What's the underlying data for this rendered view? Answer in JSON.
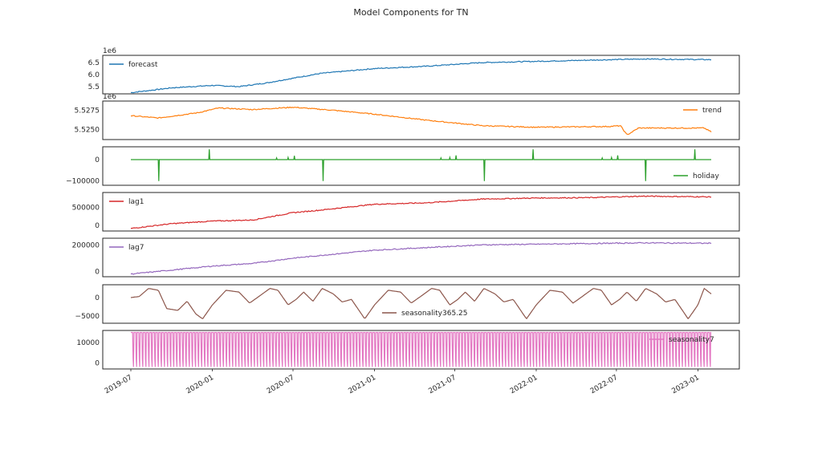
{
  "title": "Model Components for TN",
  "chart_data": {
    "type": "line",
    "title": "Model Components for TN",
    "x_tick_labels": [
      "2019-07",
      "2020-01",
      "2020-07",
      "2021-01",
      "2021-07",
      "2022-01",
      "2022-07",
      "2023-01"
    ],
    "x_range": [
      "2019-07-01",
      "2023-01-31"
    ],
    "panels": [
      {
        "name": "forecast",
        "color": "#1f77b4",
        "legend_pos": "top-left",
        "offset_label": "1e6",
        "ylim": [
          5.2,
          6.8
        ],
        "yticks": [
          "6.5",
          "6.0",
          "5.5"
        ],
        "points": [
          [
            "2019-07-01",
            5.25
          ],
          [
            "2019-10-01",
            5.45
          ],
          [
            "2020-01-01",
            5.55
          ],
          [
            "2020-03-01",
            5.5
          ],
          [
            "2020-05-01",
            5.65
          ],
          [
            "2020-07-01",
            5.85
          ],
          [
            "2020-09-01",
            6.05
          ],
          [
            "2021-01-01",
            6.25
          ],
          [
            "2021-05-01",
            6.35
          ],
          [
            "2021-09-01",
            6.5
          ],
          [
            "2022-01-01",
            6.55
          ],
          [
            "2022-05-01",
            6.6
          ],
          [
            "2022-09-01",
            6.65
          ],
          [
            "2023-01-31",
            6.62
          ]
        ]
      },
      {
        "name": "trend",
        "color": "#ff7f0e",
        "legend_pos": "top-right",
        "offset_label": "1e6",
        "ylim": [
          5.5237,
          5.5287
        ],
        "yticks": [
          "5.5275",
          "5.5250"
        ],
        "points": [
          [
            "2019-07-01",
            5.5268
          ],
          [
            "2019-09-01",
            5.5265
          ],
          [
            "2019-12-01",
            5.5272
          ],
          [
            "2020-01-15",
            5.5278
          ],
          [
            "2020-04-01",
            5.5276
          ],
          [
            "2020-07-01",
            5.5279
          ],
          [
            "2020-10-01",
            5.5275
          ],
          [
            "2021-01-01",
            5.527
          ],
          [
            "2021-05-01",
            5.5262
          ],
          [
            "2021-09-01",
            5.5255
          ],
          [
            "2022-01-01",
            5.5253
          ],
          [
            "2022-06-15",
            5.5254
          ],
          [
            "2022-07-10",
            5.5255
          ],
          [
            "2022-07-25",
            5.5243
          ],
          [
            "2022-08-20",
            5.5252
          ],
          [
            "2023-01-15",
            5.5252
          ],
          [
            "2023-01-31",
            5.5247
          ]
        ]
      },
      {
        "name": "holiday",
        "color": "#2ca02c",
        "legend_pos": "bottom-right",
        "offset_label": "",
        "ylim": [
          -120000,
          60000
        ],
        "yticks": [
          "0",
          "−100000"
        ],
        "baseline": 0,
        "spikes": [
          [
            "2019-09-02",
            -100000
          ],
          [
            "2019-12-25",
            48000
          ],
          [
            "2020-05-25",
            8000
          ],
          [
            "2020-06-20",
            10000
          ],
          [
            "2020-07-04",
            18000
          ],
          [
            "2020-09-07",
            -100000
          ],
          [
            "2021-05-31",
            8000
          ],
          [
            "2021-06-20",
            10000
          ],
          [
            "2021-07-04",
            20000
          ],
          [
            "2021-09-06",
            -100000
          ],
          [
            "2021-12-25",
            48000
          ],
          [
            "2022-05-30",
            8000
          ],
          [
            "2022-06-20",
            10000
          ],
          [
            "2022-07-04",
            20000
          ],
          [
            "2022-09-05",
            -100000
          ],
          [
            "2022-12-25",
            48000
          ]
        ]
      },
      {
        "name": "lag1",
        "color": "#d62728",
        "legend_pos": "top-left",
        "offset_label": "",
        "ylim": [
          -150000,
          900000
        ],
        "yticks": [
          "500000",
          "0"
        ],
        "points": [
          [
            "2019-07-01",
            -80000
          ],
          [
            "2019-10-01",
            50000
          ],
          [
            "2020-01-01",
            120000
          ],
          [
            "2020-04-01",
            150000
          ],
          [
            "2020-07-01",
            350000
          ],
          [
            "2020-09-01",
            420000
          ],
          [
            "2021-01-01",
            580000
          ],
          [
            "2021-05-01",
            620000
          ],
          [
            "2021-09-01",
            720000
          ],
          [
            "2022-01-01",
            750000
          ],
          [
            "2022-05-01",
            760000
          ],
          [
            "2022-09-01",
            800000
          ],
          [
            "2023-01-31",
            780000
          ]
        ]
      },
      {
        "name": "lag7",
        "color": "#9467bd",
        "legend_pos": "top-left",
        "offset_label": "",
        "ylim": [
          -40000,
          250000
        ],
        "yticks": [
          "200000",
          "0"
        ],
        "points": [
          [
            "2019-07-01",
            -20000
          ],
          [
            "2019-10-01",
            10000
          ],
          [
            "2020-01-01",
            40000
          ],
          [
            "2020-04-01",
            60000
          ],
          [
            "2020-07-01",
            100000
          ],
          [
            "2020-09-01",
            120000
          ],
          [
            "2021-01-01",
            160000
          ],
          [
            "2021-05-01",
            180000
          ],
          [
            "2021-09-01",
            200000
          ],
          [
            "2022-01-01",
            205000
          ],
          [
            "2022-05-01",
            210000
          ],
          [
            "2022-09-01",
            215000
          ],
          [
            "2023-01-31",
            212000
          ]
        ]
      },
      {
        "name": "seasonality365.25",
        "color": "#8c564b",
        "legend_pos": "lower-center",
        "offset_label": "",
        "ylim": [
          -7000,
          3500
        ],
        "yticks": [
          "0",
          "−5000"
        ],
        "points": [
          [
            "2019-07-01",
            0
          ],
          [
            "2019-07-20",
            300
          ],
          [
            "2019-08-10",
            2500
          ],
          [
            "2019-09-01",
            2000
          ],
          [
            "2019-09-20",
            -3000
          ],
          [
            "2019-10-15",
            -3500
          ],
          [
            "2019-11-05",
            -1000
          ],
          [
            "2019-11-25",
            -4500
          ],
          [
            "2019-12-10",
            -5800
          ],
          [
            "2020-01-01",
            -2000
          ],
          [
            "2020-02-01",
            2000
          ],
          [
            "2020-03-01",
            1500
          ],
          [
            "2020-03-25",
            -1500
          ],
          [
            "2020-04-15",
            300
          ],
          [
            "2020-05-10",
            2500
          ],
          [
            "2020-05-28",
            2000
          ],
          [
            "2020-06-20",
            -2000
          ],
          [
            "2020-07-08",
            -500
          ],
          [
            "2020-07-25",
            1500
          ],
          [
            "2020-08-15",
            -1000
          ],
          [
            "2020-09-05",
            2500
          ],
          [
            "2020-09-30",
            1000
          ],
          [
            "2020-10-20",
            -1200
          ],
          [
            "2020-11-10",
            -500
          ],
          [
            "2020-12-10",
            -5800
          ],
          [
            "2021-01-01",
            -2000
          ],
          [
            "2021-02-01",
            2000
          ],
          [
            "2021-03-01",
            1500
          ],
          [
            "2021-03-25",
            -1500
          ],
          [
            "2021-04-15",
            300
          ],
          [
            "2021-05-10",
            2500
          ],
          [
            "2021-05-28",
            2000
          ],
          [
            "2021-06-20",
            -2000
          ],
          [
            "2021-07-08",
            -500
          ],
          [
            "2021-07-25",
            1500
          ],
          [
            "2021-08-15",
            -1000
          ],
          [
            "2021-09-05",
            2500
          ],
          [
            "2021-09-30",
            1000
          ],
          [
            "2021-10-20",
            -1200
          ],
          [
            "2021-11-10",
            -500
          ],
          [
            "2021-12-10",
            -5800
          ],
          [
            "2022-01-01",
            -2000
          ],
          [
            "2022-02-01",
            2000
          ],
          [
            "2022-03-01",
            1500
          ],
          [
            "2022-03-25",
            -1500
          ],
          [
            "2022-04-15",
            300
          ],
          [
            "2022-05-10",
            2500
          ],
          [
            "2022-05-28",
            2000
          ],
          [
            "2022-06-20",
            -2000
          ],
          [
            "2022-07-08",
            -500
          ],
          [
            "2022-07-25",
            1500
          ],
          [
            "2022-08-15",
            -1000
          ],
          [
            "2022-09-05",
            2500
          ],
          [
            "2022-09-30",
            1000
          ],
          [
            "2022-10-20",
            -1200
          ],
          [
            "2022-11-10",
            -500
          ],
          [
            "2022-12-10",
            -5800
          ],
          [
            "2023-01-01",
            -2000
          ],
          [
            "2023-01-15",
            2500
          ],
          [
            "2023-01-31",
            1000
          ]
        ]
      },
      {
        "name": "seasonality7",
        "color": "#e377c2",
        "legend_pos": "top-right",
        "offset_label": "",
        "ylim": [
          -3000,
          16000
        ],
        "yticks": [
          "10000",
          "0"
        ],
        "weekly": {
          "start": "2019-07-01",
          "end": "2023-01-31",
          "low": -2000,
          "high": 15000,
          "mid": 2000
        }
      }
    ]
  }
}
